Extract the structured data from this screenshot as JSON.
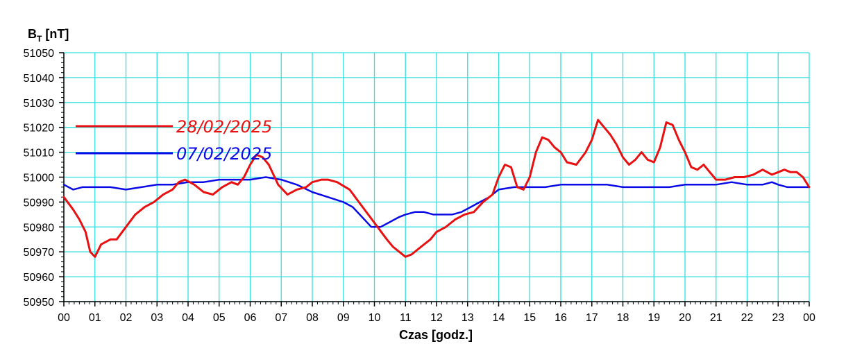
{
  "chart_data": {
    "type": "line",
    "ylabel": {
      "main": "B",
      "sub": "T",
      "unit": " [nT]"
    },
    "xlabel": "Czas [godz.]",
    "ylim": [
      50950,
      51050
    ],
    "xlim": [
      0,
      24
    ],
    "yticks": [
      "50950",
      "50960",
      "50970",
      "50980",
      "50990",
      "51000",
      "51010",
      "51020",
      "51030",
      "51040",
      "51050"
    ],
    "xticks": [
      "00",
      "01",
      "02",
      "03",
      "04",
      "05",
      "06",
      "07",
      "08",
      "09",
      "10",
      "11",
      "12",
      "13",
      "14",
      "15",
      "16",
      "17",
      "18",
      "19",
      "20",
      "21",
      "22",
      "23",
      "00"
    ],
    "grid": true,
    "grid_color": "#33e0e0",
    "legend_position": "upper-left",
    "series": [
      {
        "name": "28/02/2025",
        "color": "#e81010",
        "x": [
          0,
          0.3,
          0.5,
          0.7,
          0.85,
          1.0,
          1.2,
          1.5,
          1.7,
          2.0,
          2.3,
          2.6,
          2.9,
          3.2,
          3.5,
          3.7,
          3.9,
          4.2,
          4.5,
          4.8,
          5.1,
          5.4,
          5.6,
          5.8,
          6.0,
          6.2,
          6.4,
          6.6,
          6.9,
          7.2,
          7.5,
          7.8,
          8.0,
          8.3,
          8.5,
          8.8,
          9.2,
          9.5,
          9.8,
          10.1,
          10.4,
          10.6,
          10.8,
          11.0,
          11.2,
          11.5,
          11.8,
          12.0,
          12.3,
          12.6,
          12.9,
          13.2,
          13.5,
          13.8,
          14.0,
          14.2,
          14.4,
          14.6,
          14.8,
          15.0,
          15.2,
          15.4,
          15.6,
          15.8,
          16.0,
          16.2,
          16.5,
          16.8,
          17.0,
          17.2,
          17.4,
          17.6,
          17.8,
          18.0,
          18.2,
          18.4,
          18.6,
          18.8,
          19.0,
          19.2,
          19.4,
          19.6,
          19.8,
          20.0,
          20.2,
          20.4,
          20.6,
          20.8,
          21.0,
          21.3,
          21.6,
          21.9,
          22.2,
          22.5,
          22.8,
          23.0,
          23.2,
          23.4,
          23.6,
          23.8,
          24.0
        ],
        "y": [
          50992,
          50987,
          50983,
          50978,
          50970,
          50968,
          50973,
          50975,
          50975,
          50980,
          50985,
          50988,
          50990,
          50993,
          50995,
          50998,
          50999,
          50997,
          50994,
          50993,
          50996,
          50998,
          50997,
          51000,
          51005,
          51009,
          51008,
          51005,
          50997,
          50993,
          50995,
          50996,
          50998,
          50999,
          50999,
          50998,
          50995,
          50990,
          50985,
          50980,
          50975,
          50972,
          50970,
          50968,
          50969,
          50972,
          50975,
          50978,
          50980,
          50983,
          50985,
          50986,
          50990,
          50993,
          51000,
          51005,
          51004,
          50996,
          50995,
          51000,
          51010,
          51016,
          51015,
          51012,
          51010,
          51006,
          51005,
          51010,
          51015,
          51023,
          51020,
          51017,
          51013,
          51008,
          51005,
          51007,
          51010,
          51007,
          51006,
          51012,
          51022,
          51021,
          51015,
          51010,
          51004,
          51003,
          51005,
          51002,
          50999,
          50999,
          51000,
          51000,
          51001,
          51003,
          51001,
          51002,
          51003,
          51002,
          51002,
          51000,
          50996
        ]
      },
      {
        "name": "07/02/2025",
        "color": "#0a0ae6",
        "x": [
          0,
          0.3,
          0.6,
          1.0,
          1.5,
          2.0,
          2.5,
          3.0,
          3.5,
          4.0,
          4.5,
          5.0,
          5.5,
          6.0,
          6.5,
          7.0,
          7.5,
          8.0,
          8.5,
          9.0,
          9.3,
          9.6,
          9.9,
          10.2,
          10.5,
          10.8,
          11.0,
          11.3,
          11.6,
          11.9,
          12.2,
          12.5,
          12.8,
          13.1,
          13.4,
          13.7,
          14.0,
          14.5,
          15.0,
          15.5,
          16.0,
          16.5,
          17.0,
          17.5,
          18.0,
          18.5,
          19.0,
          19.5,
          20.0,
          20.5,
          21.0,
          21.5,
          22.0,
          22.5,
          22.8,
          23.0,
          23.3,
          23.6,
          24.0
        ],
        "y": [
          50997,
          50995,
          50996,
          50996,
          50996,
          50995,
          50996,
          50997,
          50997,
          50998,
          50998,
          50999,
          50999,
          50999,
          51000,
          50999,
          50997,
          50994,
          50992,
          50990,
          50988,
          50984,
          50980,
          50980,
          50982,
          50984,
          50985,
          50986,
          50986,
          50985,
          50985,
          50985,
          50986,
          50988,
          50990,
          50992,
          50995,
          50996,
          50996,
          50996,
          50997,
          50997,
          50997,
          50997,
          50996,
          50996,
          50996,
          50996,
          50997,
          50997,
          50997,
          50998,
          50997,
          50997,
          50998,
          50997,
          50996,
          50996,
          50996
        ]
      }
    ]
  }
}
